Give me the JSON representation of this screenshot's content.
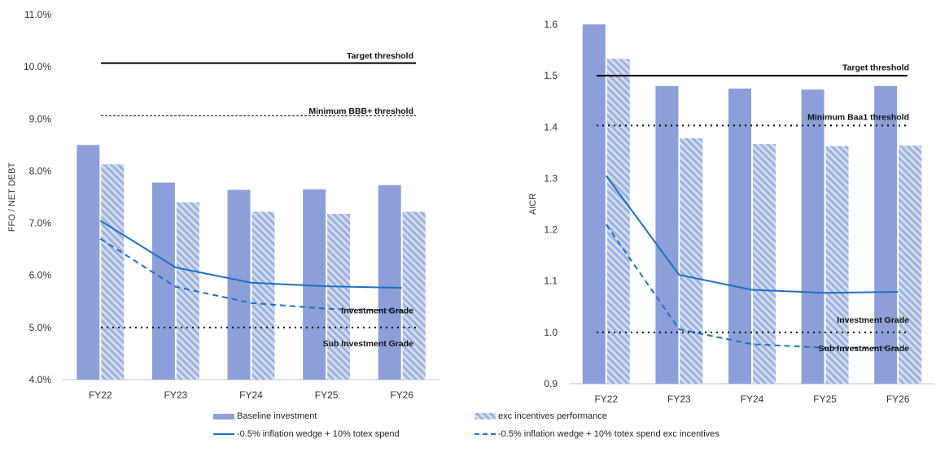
{
  "colors": {
    "bar_baseline": "#8c9fd8",
    "bar_hatch_light": "#c9d6ee",
    "bar_hatch_dark": "#9ab0db",
    "line_blue": "#1f6fc0",
    "threshold": "#000000",
    "axis": "#bfbfbf"
  },
  "legend": {
    "baseline": "Baseline investment",
    "exc": "exc incentives performance",
    "wedge": "-0.5% inflation wedge + 10% totex spend",
    "wedge_exc": "-0.5% inflation wedge + 10% totex spend exc incentives"
  },
  "chart_data": [
    {
      "type": "bar",
      "ylabel": "FFO / NET DEBT",
      "xlabel": "",
      "categories": [
        "FY22",
        "FY23",
        "FY24",
        "FY25",
        "FY26"
      ],
      "ylim": [
        4.0,
        11.0
      ],
      "yticks": [
        4.0,
        5.0,
        6.0,
        7.0,
        8.0,
        9.0,
        10.0,
        11.0
      ],
      "ytick_labels": [
        "4.0%",
        "5.0%",
        "6.0%",
        "7.0%",
        "8.0%",
        "9.0%",
        "10.0%",
        "11.0%"
      ],
      "series": [
        {
          "name": "Baseline investment",
          "kind": "bar",
          "values": [
            8.5,
            7.78,
            7.64,
            7.65,
            7.73
          ]
        },
        {
          "name": "exc incentives performance",
          "kind": "bar-hatched",
          "values": [
            8.13,
            7.4,
            7.22,
            7.18,
            7.22
          ]
        },
        {
          "name": "-0.5% inflation wedge + 10% totex spend",
          "kind": "line",
          "values": [
            7.05,
            6.15,
            5.86,
            5.79,
            5.76
          ]
        },
        {
          "name": "-0.5% inflation wedge + 10% totex spend exc incentives",
          "kind": "line-dashed",
          "values": [
            6.7,
            5.78,
            5.47,
            5.36,
            5.33
          ]
        }
      ],
      "thresholds": [
        {
          "label": "Target threshold",
          "value": 10.07,
          "style": "solid"
        },
        {
          "label": "Minimum BBB+ threshold",
          "value": 9.06,
          "style": "dashed"
        },
        {
          "label": "Investment Grade",
          "value": 5.0,
          "style": "dotted"
        }
      ],
      "annotations": [
        {
          "text": "Target threshold",
          "value": 10.22
        },
        {
          "text": "Minimum BBB+ threshold",
          "value": 9.16
        },
        {
          "text": "Investment Grade",
          "value": 5.33
        },
        {
          "text": "Sub Investment Grade",
          "value": 4.7
        }
      ]
    },
    {
      "type": "bar",
      "ylabel": "AICR",
      "xlabel": "",
      "categories": [
        "FY22",
        "FY23",
        "FY24",
        "FY25",
        "FY26"
      ],
      "ylim": [
        0.9,
        1.6
      ],
      "yticks": [
        0.9,
        1.0,
        1.1,
        1.2,
        1.3,
        1.4,
        1.5,
        1.6
      ],
      "ytick_labels": [
        "0.9",
        "1.0",
        "1.1",
        "1.2",
        "1.3",
        "1.4",
        "1.5",
        "1.6"
      ],
      "series": [
        {
          "name": "Baseline investment",
          "kind": "bar",
          "values": [
            1.6,
            1.48,
            1.475,
            1.473,
            1.48
          ]
        },
        {
          "name": "exc incentives performance",
          "kind": "bar-hatched",
          "values": [
            1.533,
            1.378,
            1.367,
            1.363,
            1.364
          ]
        },
        {
          "name": "-0.5% inflation wedge + 10% totex spend",
          "kind": "line",
          "values": [
            1.305,
            1.112,
            1.083,
            1.077,
            1.079
          ]
        },
        {
          "name": "-0.5% inflation wedge + 10% totex spend exc incentives",
          "kind": "line-dashed",
          "values": [
            1.21,
            1.006,
            0.977,
            0.97,
            0.97
          ]
        }
      ],
      "thresholds": [
        {
          "label": "Target threshold",
          "value": 1.5,
          "style": "solid"
        },
        {
          "label": "Minimum Baa1 threshold",
          "value": 1.403,
          "style": "dotted"
        },
        {
          "label": "Investment Grade",
          "value": 1.0,
          "style": "dotted"
        }
      ],
      "annotations": [
        {
          "text": "Target threshold",
          "value": 1.517
        },
        {
          "text": "Minimum Baa1 threshold",
          "value": 1.42
        },
        {
          "text": "Investment Grade",
          "value": 1.025
        },
        {
          "text": "Sub Investment Grade",
          "value": 0.97
        }
      ]
    }
  ]
}
